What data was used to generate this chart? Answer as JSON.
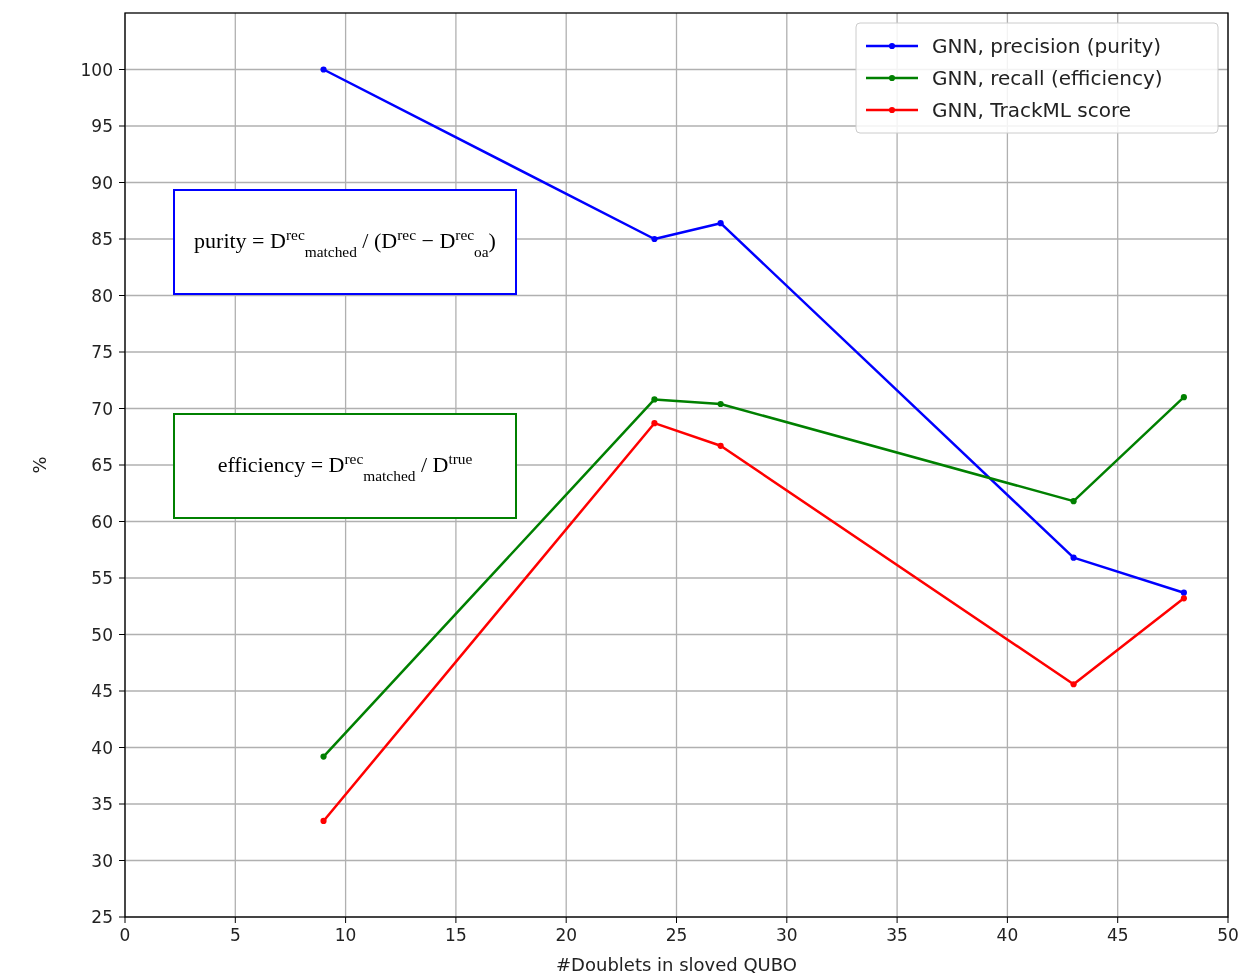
{
  "chart_data": {
    "type": "line",
    "xlabel": "#Doublets in sloved QUBO",
    "ylabel": "%",
    "xlim": [
      0,
      50
    ],
    "xticks": [
      0,
      5,
      10,
      15,
      20,
      25,
      30,
      35,
      40,
      45,
      50
    ],
    "ylim": [
      25,
      105
    ],
    "yticks": [
      25,
      30,
      35,
      40,
      45,
      50,
      55,
      60,
      65,
      70,
      75,
      80,
      85,
      90,
      95,
      100
    ],
    "grid": true,
    "legend": "top right",
    "marker": "circle",
    "line_style": "solid",
    "series": [
      {
        "name": "GNN, precision (purity)",
        "color": "#0000ff",
        "x": [
          9,
          24,
          27,
          43,
          48
        ],
        "values": [
          100,
          85,
          86.4,
          56.8,
          53.7
        ]
      },
      {
        "name": "GNN, recall (efficiency)",
        "color": "#008000",
        "x": [
          9,
          24,
          27,
          43,
          48
        ],
        "values": [
          39.2,
          70.8,
          70.4,
          61.8,
          71
        ]
      },
      {
        "name": "GNN, TrackML score",
        "color": "#ff0000",
        "x": [
          9,
          24,
          27,
          43,
          48
        ],
        "values": [
          33.5,
          68.7,
          66.7,
          45.6,
          53.2
        ]
      }
    ],
    "annotations": [
      "purity = D$^{rec}$$_{matched}$ / (D$^{rec}$ − D$^{rec}$$_{oa}$)",
      "efficiency = D$^{rec}$$_{matched}$ / D$^{true}$"
    ]
  }
}
